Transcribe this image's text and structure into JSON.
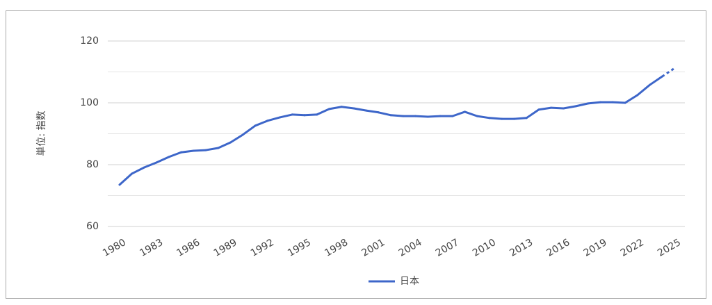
{
  "chart_data": {
    "type": "line",
    "y_label": "単位: 指数",
    "x": [
      1980,
      1981,
      1982,
      1983,
      1984,
      1985,
      1986,
      1987,
      1988,
      1989,
      1990,
      1991,
      1992,
      1993,
      1994,
      1995,
      1996,
      1997,
      1998,
      1999,
      2000,
      2001,
      2002,
      2003,
      2004,
      2005,
      2006,
      2007,
      2008,
      2009,
      2010,
      2011,
      2012,
      2013,
      2014,
      2015,
      2016,
      2017,
      2018,
      2019,
      2020,
      2021,
      2022,
      2023,
      2024,
      2025
    ],
    "series": [
      {
        "name": "日本",
        "color": "#3d66c9",
        "values": [
          73.5,
          77.1,
          79.1,
          80.7,
          82.5,
          84.0,
          84.5,
          84.7,
          85.4,
          87.2,
          89.7,
          92.6,
          94.2,
          95.3,
          96.2,
          96.0,
          96.2,
          98.0,
          98.7,
          98.2,
          97.5,
          96.9,
          96.0,
          95.7,
          95.7,
          95.5,
          95.7,
          95.7,
          97.1,
          95.7,
          95.1,
          94.8,
          94.8,
          95.1,
          97.8,
          98.4,
          98.2,
          98.9,
          99.8,
          100.2,
          100.2,
          100.0,
          102.5,
          105.8,
          108.5,
          111.2
        ],
        "dashed_from_x": 2024
      }
    ],
    "xlim": [
      1980,
      2025
    ],
    "xticks": [
      1980,
      1983,
      1986,
      1989,
      1992,
      1995,
      1998,
      2001,
      2004,
      2007,
      2010,
      2013,
      2016,
      2019,
      2022,
      2025
    ],
    "ylim": [
      60,
      120
    ],
    "yticks": [
      60,
      80,
      100,
      120
    ],
    "minor_yticks": [
      70,
      90,
      110
    ],
    "grid": true,
    "legend": "bottom"
  }
}
